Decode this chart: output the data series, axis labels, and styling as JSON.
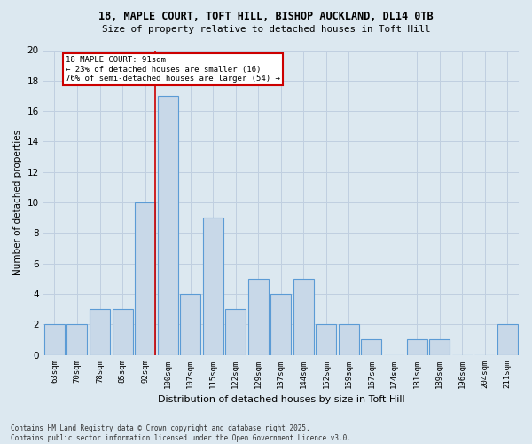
{
  "title_line1": "18, MAPLE COURT, TOFT HILL, BISHOP AUCKLAND, DL14 0TB",
  "title_line2": "Size of property relative to detached houses in Toft Hill",
  "xlabel": "Distribution of detached houses by size in Toft Hill",
  "ylabel": "Number of detached properties",
  "categories": [
    "63sqm",
    "70sqm",
    "78sqm",
    "85sqm",
    "92sqm",
    "100sqm",
    "107sqm",
    "115sqm",
    "122sqm",
    "129sqm",
    "137sqm",
    "144sqm",
    "152sqm",
    "159sqm",
    "167sqm",
    "174sqm",
    "181sqm",
    "189sqm",
    "196sqm",
    "204sqm",
    "211sqm"
  ],
  "values": [
    2,
    2,
    3,
    3,
    10,
    17,
    4,
    9,
    3,
    5,
    4,
    5,
    2,
    2,
    1,
    0,
    1,
    1,
    0,
    0,
    2
  ],
  "bar_color": "#c8d8e8",
  "bar_edgecolor": "#5b9bd5",
  "red_line_index": 4,
  "annotation_title": "18 MAPLE COURT: 91sqm",
  "annotation_line2": "← 23% of detached houses are smaller (16)",
  "annotation_line3": "76% of semi-detached houses are larger (54) →",
  "annotation_box_color": "#ffffff",
  "annotation_box_edgecolor": "#cc0000",
  "red_line_color": "#cc0000",
  "ylim": [
    0,
    20
  ],
  "yticks": [
    0,
    2,
    4,
    6,
    8,
    10,
    12,
    14,
    16,
    18,
    20
  ],
  "grid_color": "#c0cfe0",
  "footer_line1": "Contains HM Land Registry data © Crown copyright and database right 2025.",
  "footer_line2": "Contains public sector information licensed under the Open Government Licence v3.0.",
  "bg_color": "#dce8f0"
}
